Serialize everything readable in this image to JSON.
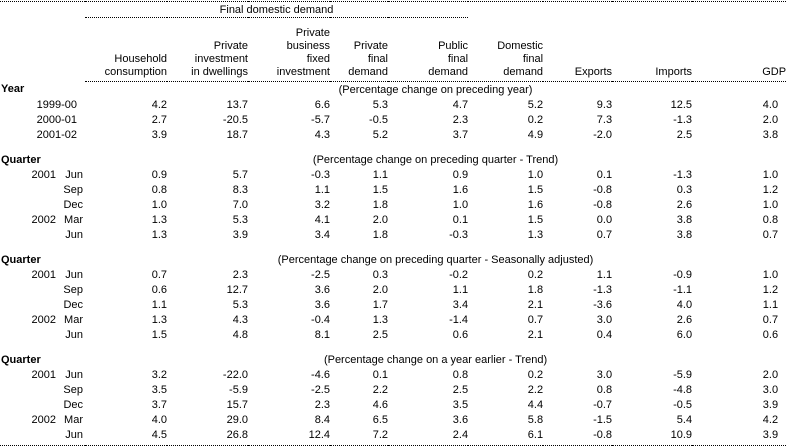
{
  "table": {
    "spanner_label": "Final domestic demand",
    "column_headers": [
      "Household\nconsumption",
      "Private\ninvestment\nin dwellings",
      "Private\nbusiness\nfixed\ninvestment",
      "Private\nfinal\ndemand",
      "Public\nfinal\ndemand",
      "Domestic\nfinal\ndemand",
      "Exports",
      "Imports",
      "GDP"
    ],
    "sections": [
      {
        "title": "Year",
        "subtitle": "(Percentage change on preceding year)",
        "rows": [
          {
            "year": "1999-00",
            "period": "",
            "values": [
              "4.2",
              "13.7",
              "6.6",
              "5.3",
              "4.7",
              "5.2",
              "9.3",
              "12.5",
              "4.0"
            ]
          },
          {
            "year": "2000-01",
            "period": "",
            "values": [
              "2.7",
              "-20.5",
              "-5.7",
              "-0.5",
              "2.3",
              "0.2",
              "7.3",
              "-1.3",
              "2.0"
            ]
          },
          {
            "year": "2001-02",
            "period": "",
            "values": [
              "3.9",
              "18.7",
              "4.3",
              "5.2",
              "3.7",
              "4.9",
              "-2.0",
              "2.5",
              "3.8"
            ]
          }
        ]
      },
      {
        "title": "Quarter",
        "subtitle": "(Percentage change on preceding quarter - Trend)",
        "rows": [
          {
            "year": "2001",
            "period": "Jun",
            "values": [
              "0.9",
              "5.7",
              "-0.3",
              "1.1",
              "0.9",
              "1.0",
              "0.1",
              "-1.3",
              "1.0"
            ]
          },
          {
            "year": "",
            "period": "Sep",
            "values": [
              "0.8",
              "8.3",
              "1.1",
              "1.5",
              "1.6",
              "1.5",
              "-0.8",
              "0.3",
              "1.2"
            ]
          },
          {
            "year": "",
            "period": "Dec",
            "values": [
              "1.0",
              "7.0",
              "3.2",
              "1.8",
              "1.0",
              "1.6",
              "-0.8",
              "2.6",
              "1.0"
            ]
          },
          {
            "year": "2002",
            "period": "Mar",
            "values": [
              "1.3",
              "5.3",
              "4.1",
              "2.0",
              "0.1",
              "1.5",
              "0.0",
              "3.8",
              "0.8"
            ]
          },
          {
            "year": "",
            "period": "Jun",
            "values": [
              "1.3",
              "3.9",
              "3.4",
              "1.8",
              "-0.3",
              "1.3",
              "0.7",
              "3.8",
              "0.7"
            ]
          }
        ]
      },
      {
        "title": "Quarter",
        "subtitle": "(Percentage change on preceding quarter - Seasonally adjusted)",
        "rows": [
          {
            "year": "2001",
            "period": "Jun",
            "values": [
              "0.7",
              "2.3",
              "-2.5",
              "0.3",
              "-0.2",
              "0.2",
              "1.1",
              "-0.9",
              "1.0"
            ]
          },
          {
            "year": "",
            "period": "Sep",
            "values": [
              "0.6",
              "12.7",
              "3.6",
              "2.0",
              "1.1",
              "1.8",
              "-1.3",
              "-1.1",
              "1.2"
            ]
          },
          {
            "year": "",
            "period": "Dec",
            "values": [
              "1.1",
              "5.3",
              "3.6",
              "1.7",
              "3.4",
              "2.1",
              "-3.6",
              "4.0",
              "1.1"
            ]
          },
          {
            "year": "2002",
            "period": "Mar",
            "values": [
              "1.3",
              "4.3",
              "-0.4",
              "1.3",
              "-1.4",
              "0.7",
              "3.0",
              "2.6",
              "0.7"
            ]
          },
          {
            "year": "",
            "period": "Jun",
            "values": [
              "1.5",
              "4.8",
              "8.1",
              "2.5",
              "0.6",
              "2.1",
              "0.4",
              "6.0",
              "0.6"
            ]
          }
        ]
      },
      {
        "title": "Quarter",
        "subtitle": "(Percentage change on a year earlier - Trend)",
        "rows": [
          {
            "year": "2001",
            "period": "Jun",
            "values": [
              "3.2",
              "-22.0",
              "-4.6",
              "0.1",
              "0.8",
              "0.2",
              "3.0",
              "-5.9",
              "2.0"
            ]
          },
          {
            "year": "",
            "period": "Sep",
            "values": [
              "3.5",
              "-5.9",
              "-2.5",
              "2.2",
              "2.5",
              "2.2",
              "0.8",
              "-4.8",
              "3.0"
            ]
          },
          {
            "year": "",
            "period": "Dec",
            "values": [
              "3.7",
              "15.7",
              "2.3",
              "4.6",
              "3.5",
              "4.4",
              "-0.7",
              "-0.5",
              "3.9"
            ]
          },
          {
            "year": "2002",
            "period": "Mar",
            "values": [
              "4.0",
              "29.0",
              "8.4",
              "6.5",
              "3.6",
              "5.8",
              "-1.5",
              "5.4",
              "4.2"
            ]
          },
          {
            "year": "",
            "period": "Jun",
            "values": [
              "4.5",
              "26.8",
              "12.4",
              "7.2",
              "2.4",
              "6.1",
              "-0.8",
              "10.9",
              "3.9"
            ]
          }
        ]
      }
    ],
    "colors": {
      "text": "#000000",
      "background": "#ffffff",
      "rule": "#000000"
    }
  }
}
